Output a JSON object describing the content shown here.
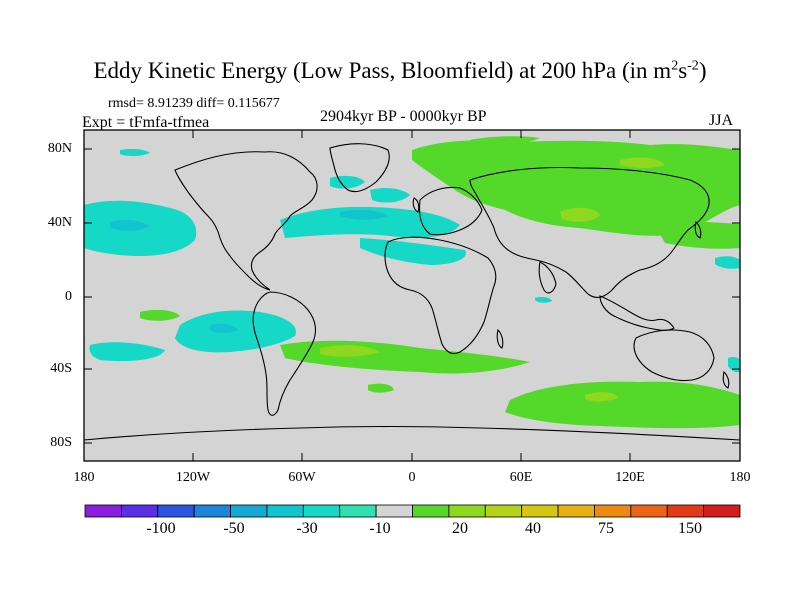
{
  "title": {
    "main": "Eddy Kinetic Energy (Low Pass, Bloomfield) at 200 hPa (in m",
    "sup1": "2",
    "mid": "s",
    "sup2": "-2",
    "end": ")"
  },
  "stats": "rmsd= 8.91239 diff= 0.115677",
  "experiment": "Expt = tFmfa-tfmea",
  "period": "2904kyr BP - 0000kyr BP",
  "season": "JJA",
  "map": {
    "lat_ticks": [
      "80N",
      "40N",
      "0",
      "40S",
      "80S"
    ],
    "lon_ticks": [
      "180",
      "120W",
      "60W",
      "0",
      "60E",
      "120E",
      "180"
    ],
    "colors": {
      "background": "#d4d4d4",
      "coast": "#000000"
    }
  },
  "colorbar": {
    "labels": [
      "-100",
      "-50",
      "-30",
      "-10",
      "20",
      "40",
      "75",
      "150"
    ],
    "colors": [
      "#8a1fe0",
      "#5a2fe8",
      "#2a55e0",
      "#1c86dc",
      "#15a9d6",
      "#11c4cf",
      "#16d8c7",
      "#2fe0b0",
      "#d4d4d4",
      "#54d829",
      "#8fd820",
      "#b6d21a",
      "#d4c612",
      "#e6b010",
      "#ee8a12",
      "#ec6416",
      "#e23a18",
      "#d41e1e"
    ]
  }
}
